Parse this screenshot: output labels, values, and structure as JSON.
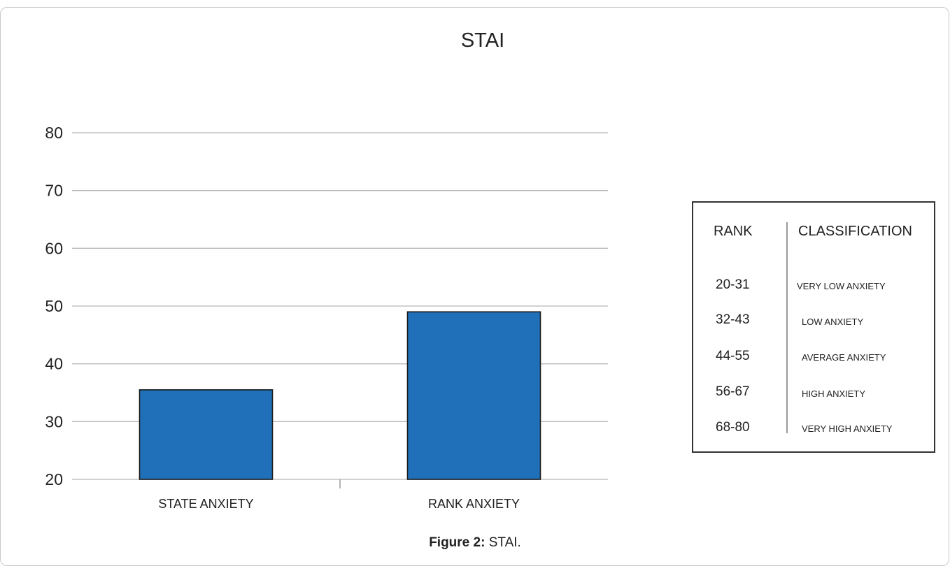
{
  "chart_data": {
    "type": "bar",
    "title": "STAI",
    "categories": [
      "STATE ANXIETY",
      "RANK ANXIETY"
    ],
    "values": [
      35.5,
      49
    ],
    "ylim": [
      20,
      80
    ],
    "yticks": [
      20,
      30,
      40,
      50,
      60,
      70,
      80
    ],
    "xlabel": "",
    "ylabel": "",
    "grid": true,
    "bar_color": "#1f70b8",
    "bar_edge_color": "#1a1a1a",
    "grid_color": "#b8b8b8"
  },
  "rank_table": {
    "header_rank": "RANK",
    "header_classification": "CLASSIFICATION",
    "rows": [
      {
        "range": "20-31",
        "classification": "VERY LOW ANXIETY"
      },
      {
        "range": "32-43",
        "classification": "LOW ANXIETY"
      },
      {
        "range": "44-55",
        "classification": "AVERAGE ANXIETY"
      },
      {
        "range": "56-67",
        "classification": "HIGH ANXIETY"
      },
      {
        "range": "68-80",
        "classification": "VERY HIGH ANXIETY"
      }
    ]
  },
  "caption": {
    "label": "Figure 2:",
    "text": " STAI."
  }
}
